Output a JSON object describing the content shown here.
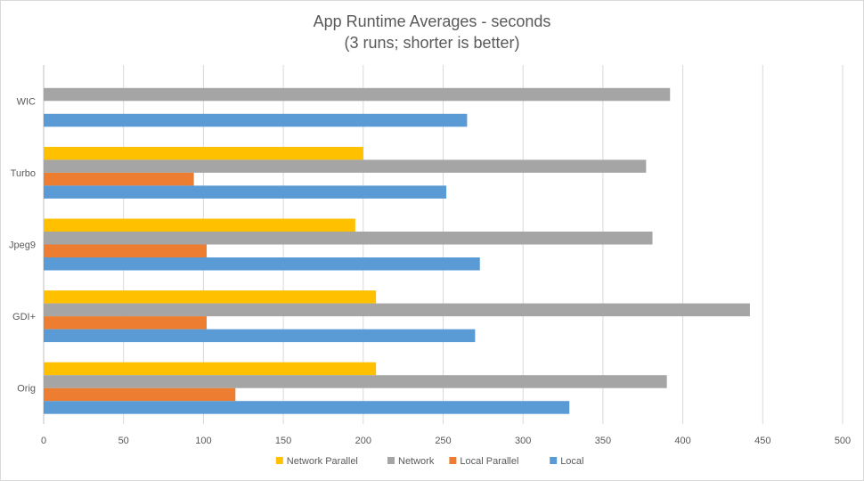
{
  "chart_data": {
    "type": "bar",
    "orientation": "horizontal",
    "title": "App Runtime Averages - seconds",
    "subtitle": "(3 runs; shorter is better)",
    "categories": [
      "WIC",
      "Turbo",
      "Jpeg9",
      "GDI+",
      "Orig"
    ],
    "series": [
      {
        "name": "Network Parallel",
        "color": "#ffc000",
        "values": [
          null,
          200,
          195,
          208,
          208
        ]
      },
      {
        "name": "Network",
        "color": "#a5a5a5",
        "values": [
          392,
          377,
          381,
          442,
          390
        ]
      },
      {
        "name": "Local Parallel",
        "color": "#ed7d31",
        "values": [
          null,
          94,
          102,
          102,
          120
        ]
      },
      {
        "name": "Local",
        "color": "#5b9bd5",
        "values": [
          265,
          252,
          273,
          270,
          329
        ]
      }
    ],
    "x_ticks": [
      "0",
      "50",
      "100",
      "150",
      "200",
      "250",
      "300",
      "350",
      "400",
      "450",
      "500"
    ],
    "xlim": [
      0,
      500
    ],
    "xlabel": "",
    "ylabel": "",
    "grid": true,
    "legend_position": "bottom"
  }
}
